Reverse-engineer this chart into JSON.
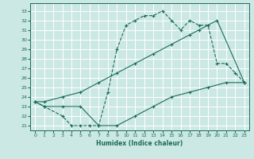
{
  "xlabel": "Humidex (Indice chaleur)",
  "bg_color": "#cce8e4",
  "grid_color": "#ffffff",
  "line_color": "#1a6b5a",
  "xlim": [
    -0.5,
    23.5
  ],
  "ylim": [
    20.5,
    33.8
  ],
  "yticks": [
    21,
    22,
    23,
    24,
    25,
    26,
    27,
    28,
    29,
    30,
    31,
    32,
    33
  ],
  "xticks": [
    0,
    1,
    2,
    3,
    4,
    5,
    6,
    7,
    8,
    9,
    10,
    11,
    12,
    13,
    14,
    15,
    16,
    17,
    18,
    19,
    20,
    21,
    22,
    23
  ],
  "line1_x": [
    0,
    1,
    3,
    4,
    5,
    6,
    7,
    8,
    9,
    10,
    11,
    12,
    13,
    14,
    15,
    16,
    17,
    18,
    19,
    20,
    21,
    22,
    23
  ],
  "line1_y": [
    23.5,
    23,
    22,
    21,
    21,
    21,
    21,
    24.5,
    29,
    31.5,
    32,
    32.5,
    32.5,
    33,
    32,
    31,
    32,
    31.5,
    31.5,
    27.5,
    27.5,
    26.5,
    25.5
  ],
  "line2_x": [
    0,
    1,
    3,
    5,
    7,
    9,
    11,
    13,
    15,
    17,
    18,
    19,
    20,
    23
  ],
  "line2_y": [
    23.5,
    23.5,
    24,
    24.5,
    25.5,
    26.5,
    27.5,
    28.5,
    29.5,
    30.5,
    31,
    31.5,
    32,
    25.5
  ],
  "line3_x": [
    0,
    1,
    3,
    5,
    7,
    9,
    11,
    13,
    15,
    17,
    19,
    21,
    23
  ],
  "line3_y": [
    23.5,
    23,
    23,
    23,
    21,
    21,
    22,
    23,
    24,
    24.5,
    25,
    25.5,
    25.5
  ]
}
